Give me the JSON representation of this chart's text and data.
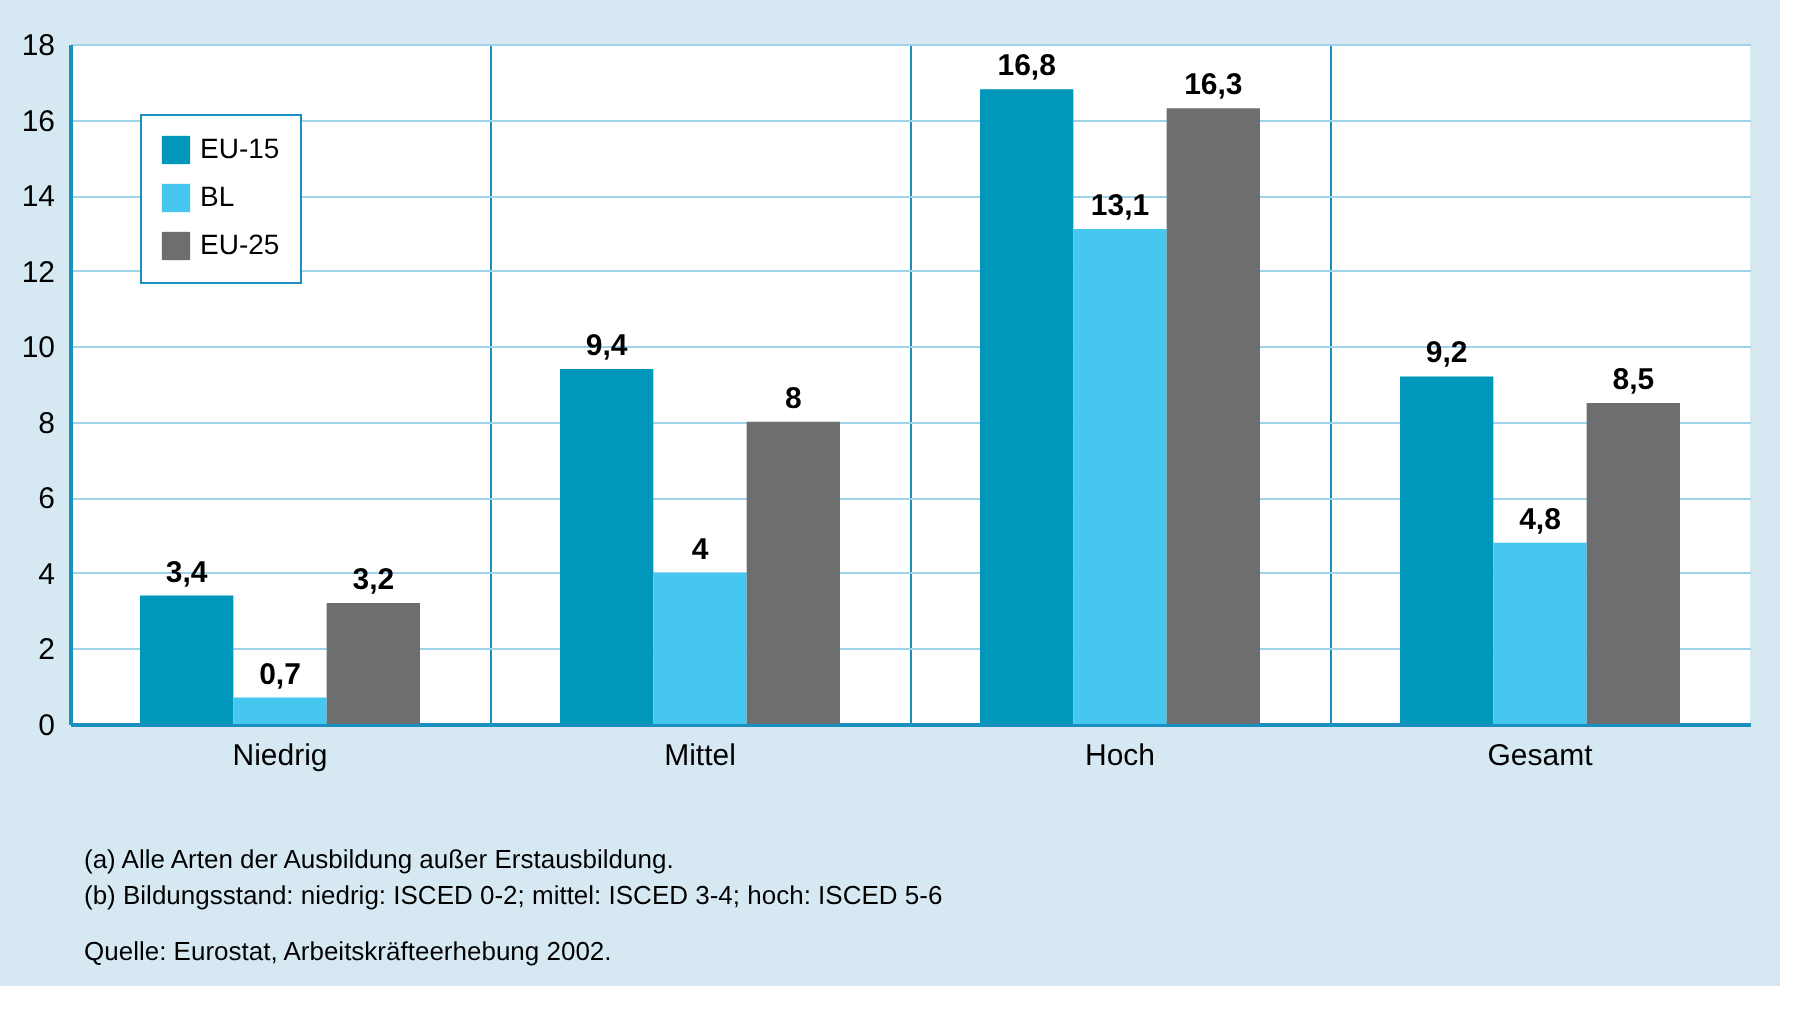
{
  "chart_data": {
    "type": "bar",
    "categories": [
      "Niedrig",
      "Mittel",
      "Hoch",
      "Gesamt"
    ],
    "series": [
      {
        "name": "EU-15",
        "color": "#0097bb",
        "values": [
          3.4,
          9.4,
          16.8,
          9.2
        ],
        "value_labels": [
          "3,4",
          "9,4",
          "16,8",
          "9,2"
        ]
      },
      {
        "name": "BL",
        "color": "#45c7f0",
        "values": [
          0.7,
          4,
          13.1,
          4.8
        ],
        "value_labels": [
          "0,7",
          "4",
          "13,1",
          "4,8"
        ]
      },
      {
        "name": "EU-25",
        "color": "#6d6e70",
        "values": [
          3.2,
          8,
          16.3,
          8.5
        ],
        "value_labels": [
          "3,2",
          "8",
          "16,3",
          "8,5"
        ]
      }
    ],
    "ylim": [
      0,
      18
    ],
    "yticks": [
      0,
      2,
      4,
      6,
      8,
      10,
      12,
      14,
      16,
      18
    ],
    "grid": true,
    "legend": "top left",
    "annotations": [
      "(a) Alle Arten der Ausbildung außer Erstausbildung.",
      "(b) Bildungsstand: niedrig: ISCED 0-2; mittel: ISCED 3-4; hoch: ISCED 5-6",
      "Quelle: Eurostat, Arbeitskräfteerhebung 2002."
    ]
  }
}
